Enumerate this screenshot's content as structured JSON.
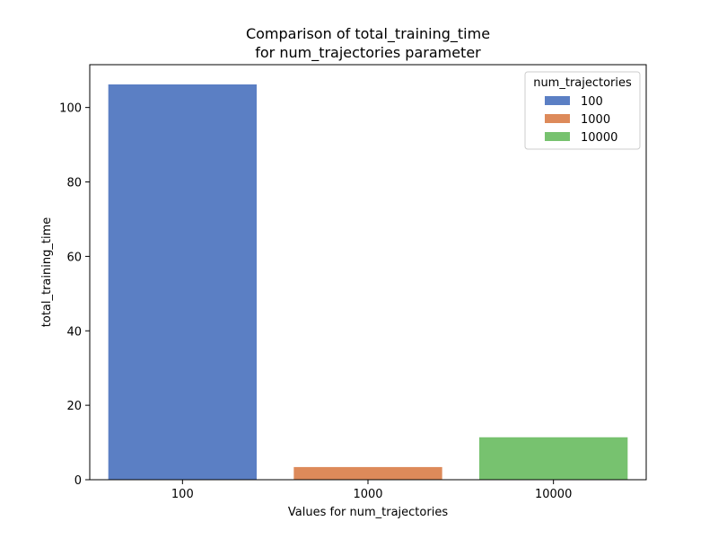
{
  "chart_data": {
    "type": "bar",
    "title_line1": "Comparison of total_training_time",
    "title_line2": "for num_trajectories parameter",
    "xlabel": "Values for num_trajectories",
    "ylabel": "total_training_time",
    "categories": [
      "100",
      "1000",
      "10000"
    ],
    "values": [
      106.2,
      3.4,
      11.4
    ],
    "colors": [
      "#5b7fc4",
      "#dd8a5a",
      "#77c26f"
    ],
    "ylim": [
      0,
      111.5
    ],
    "yticks": [
      0,
      20,
      40,
      60,
      80,
      100
    ],
    "grid": false,
    "legend": {
      "title": "num_trajectories",
      "placement": "top-right",
      "entries": [
        "100",
        "1000",
        "10000"
      ]
    }
  }
}
